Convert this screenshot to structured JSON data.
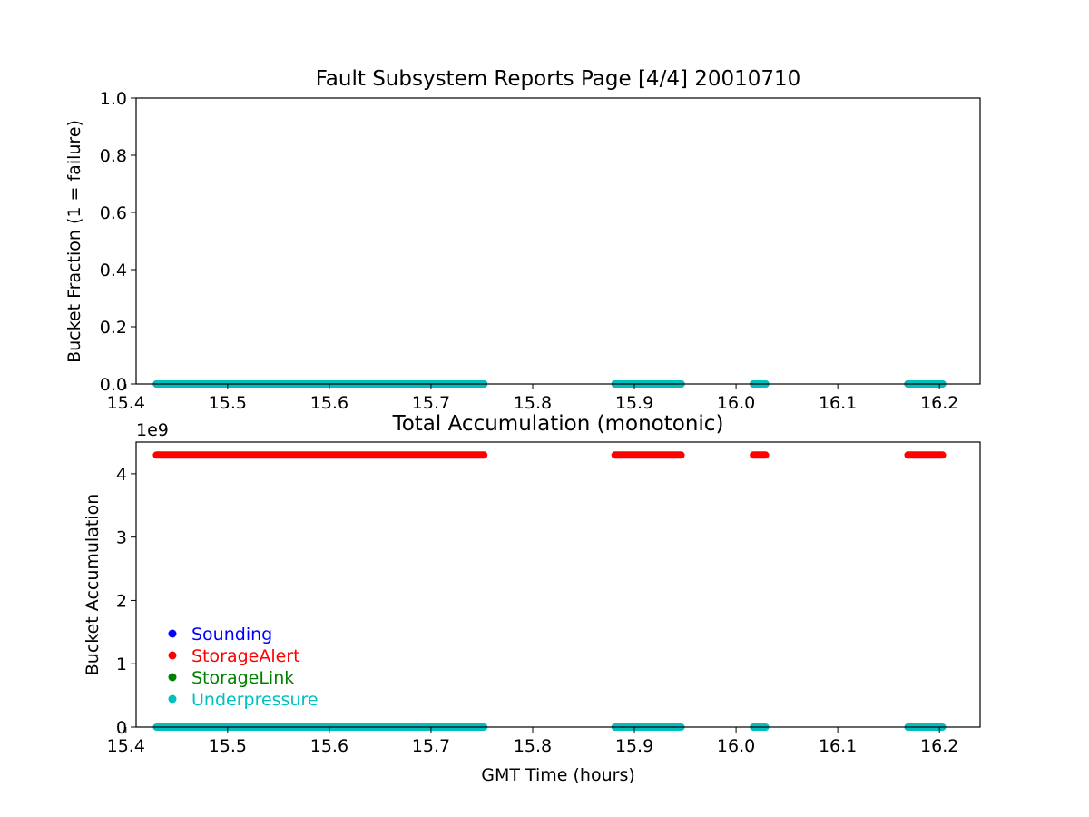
{
  "chart_data": [
    {
      "type": "scatter",
      "title": "Fault Subsystem Reports Page [4/4] 20010710",
      "xlabel": "",
      "ylabel": "Bucket Fraction (1 = failure)",
      "xlim": [
        15.41,
        16.24
      ],
      "ylim": [
        0.0,
        1.0
      ],
      "x_ticks": [
        "15.4",
        "15.5",
        "15.6",
        "15.7",
        "15.8",
        "15.9",
        "16.0",
        "16.1",
        "16.2"
      ],
      "y_ticks": [
        "0.0",
        "0.2",
        "0.4",
        "0.6",
        "0.8",
        "1.0"
      ],
      "grid": false,
      "series": [
        {
          "name": "StorageAlert",
          "color": "#ff0000",
          "segments": [
            {
              "x_start": 15.43,
              "x_end": 15.752,
              "y": 0.0
            },
            {
              "x_start": 15.881,
              "x_end": 15.946,
              "y": 0.0
            },
            {
              "x_start": 16.017,
              "x_end": 16.029,
              "y": 0.0
            },
            {
              "x_start": 16.169,
              "x_end": 16.203,
              "y": 0.0
            }
          ]
        },
        {
          "name": "Underpressure",
          "color": "#00bfbf",
          "segments": [
            {
              "x_start": 15.43,
              "x_end": 15.752,
              "y": 0.0
            },
            {
              "x_start": 15.881,
              "x_end": 15.946,
              "y": 0.0
            },
            {
              "x_start": 16.017,
              "x_end": 16.029,
              "y": 0.0
            },
            {
              "x_start": 16.169,
              "x_end": 16.203,
              "y": 0.0
            }
          ]
        }
      ]
    },
    {
      "type": "scatter",
      "title": "Total Accumulation (monotonic)",
      "xlabel": "GMT Time (hours)",
      "ylabel": "Bucket Accumulation",
      "y_scale_label": "1e9",
      "xlim": [
        15.41,
        16.24
      ],
      "ylim": [
        0.0,
        4.5
      ],
      "x_ticks": [
        "15.4",
        "15.5",
        "15.6",
        "15.7",
        "15.8",
        "15.9",
        "16.0",
        "16.1",
        "16.2"
      ],
      "y_ticks": [
        "0",
        "1",
        "2",
        "3",
        "4"
      ],
      "grid": false,
      "legend_position": "lower-left",
      "legend": [
        {
          "name": "Sounding",
          "color": "#0000ff"
        },
        {
          "name": "StorageAlert",
          "color": "#ff0000"
        },
        {
          "name": "StorageLink",
          "color": "#008000"
        },
        {
          "name": "Underpressure",
          "color": "#00bfbf"
        }
      ],
      "series": [
        {
          "name": "StorageAlert",
          "color": "#ff0000",
          "segments": [
            {
              "x_start": 15.43,
              "x_end": 15.752,
              "y": 4.295
            },
            {
              "x_start": 15.881,
              "x_end": 15.946,
              "y": 4.295
            },
            {
              "x_start": 16.017,
              "x_end": 16.029,
              "y": 4.295
            },
            {
              "x_start": 16.169,
              "x_end": 16.203,
              "y": 4.295
            }
          ]
        },
        {
          "name": "Underpressure",
          "color": "#00bfbf",
          "segments": [
            {
              "x_start": 15.43,
              "x_end": 15.752,
              "y": 0.0
            },
            {
              "x_start": 15.881,
              "x_end": 15.946,
              "y": 0.0
            },
            {
              "x_start": 16.017,
              "x_end": 16.029,
              "y": 0.0
            },
            {
              "x_start": 16.169,
              "x_end": 16.203,
              "y": 0.0
            }
          ]
        }
      ]
    }
  ]
}
